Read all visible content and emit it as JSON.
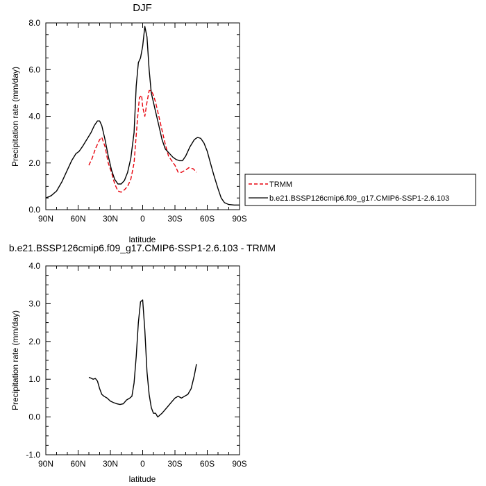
{
  "chart_data": [
    {
      "type": "line",
      "title": "DJF",
      "xlabel": "latitude",
      "ylabel": "Precipitation rate (mm/day)",
      "xlim": [
        90,
        -90
      ],
      "ylim": [
        0,
        8
      ],
      "x_ticks": [
        90,
        60,
        30,
        0,
        -30,
        -60,
        -90
      ],
      "x_tick_labels": [
        "90N",
        "60N",
        "30N",
        "0",
        "30S",
        "60S",
        "90S"
      ],
      "y_ticks": [
        0,
        2,
        4,
        6,
        8
      ],
      "y_tick_labels": [
        "0.0",
        "2.0",
        "4.0",
        "6.0",
        "8.0"
      ],
      "legend_placement": "right, outside plot",
      "series": [
        {
          "name": "TRMM",
          "color": "#e8000b",
          "dash": "dashed",
          "x": [
            50,
            47,
            44,
            40,
            38,
            35,
            32,
            29,
            26,
            23,
            20,
            17,
            14,
            11,
            8,
            5,
            3,
            1,
            0,
            -2,
            -4,
            -6,
            -8,
            -10,
            -12,
            -15,
            -18,
            -21,
            -24,
            -27,
            -30,
            -33,
            -36,
            -40,
            -43,
            -47,
            -50
          ],
          "y": [
            1.9,
            2.2,
            2.6,
            3.0,
            3.1,
            2.7,
            2.0,
            1.6,
            1.1,
            0.8,
            0.75,
            0.85,
            1.0,
            1.3,
            2.0,
            3.8,
            4.8,
            4.9,
            4.4,
            4.0,
            4.6,
            5.1,
            5.1,
            4.9,
            4.6,
            4.0,
            3.4,
            2.8,
            2.3,
            2.1,
            1.9,
            1.6,
            1.6,
            1.7,
            1.8,
            1.75,
            1.6
          ]
        },
        {
          "name": "b.e21.BSSP126cmip6.f09_g17.CMIP6-SSP1-2.6.103",
          "color": "#000000",
          "dash": "solid",
          "x": [
            90,
            85,
            80,
            75,
            70,
            66,
            62,
            59,
            56,
            52,
            48,
            45,
            42,
            40,
            38,
            35,
            32,
            29,
            26,
            23,
            20,
            17,
            14,
            11,
            8,
            6,
            4,
            2,
            0,
            -2,
            -4,
            -6,
            -8,
            -10,
            -12,
            -15,
            -18,
            -21,
            -25,
            -28,
            -31,
            -34,
            -37,
            -40,
            -44,
            -48,
            -51,
            -54,
            -57,
            -60,
            -63,
            -66,
            -70,
            -73,
            -76,
            -80,
            -85,
            -90
          ],
          "y": [
            0.5,
            0.6,
            0.8,
            1.2,
            1.7,
            2.1,
            2.4,
            2.5,
            2.7,
            3.0,
            3.3,
            3.6,
            3.8,
            3.8,
            3.6,
            3.0,
            2.3,
            1.7,
            1.3,
            1.1,
            1.1,
            1.25,
            1.6,
            2.2,
            3.3,
            5.3,
            6.3,
            6.5,
            7.0,
            7.85,
            7.4,
            6.0,
            5.0,
            4.6,
            4.2,
            3.6,
            3.0,
            2.6,
            2.4,
            2.25,
            2.15,
            2.1,
            2.1,
            2.3,
            2.7,
            3.0,
            3.1,
            3.05,
            2.85,
            2.5,
            2.0,
            1.5,
            0.9,
            0.5,
            0.3,
            0.22,
            0.2,
            0.2
          ]
        }
      ]
    },
    {
      "type": "line",
      "title": "b.e21.BSSP126cmip6.f09_g17.CMIP6-SSP1-2.6.103 - TRMM",
      "xlabel": "latitude",
      "ylabel": "Precipitation rate (mm/day)",
      "xlim": [
        90,
        -90
      ],
      "ylim": [
        -1,
        4
      ],
      "x_ticks": [
        90,
        60,
        30,
        0,
        -30,
        -60,
        -90
      ],
      "x_tick_labels": [
        "90N",
        "60N",
        "30N",
        "0",
        "30S",
        "60S",
        "90S"
      ],
      "y_ticks": [
        -1,
        0,
        1,
        2,
        3,
        4
      ],
      "y_tick_labels": [
        "-1.0",
        "0.0",
        "1.0",
        "2.0",
        "3.0",
        "4.0"
      ],
      "series": [
        {
          "color": "#000000",
          "dash": "solid",
          "x": [
            50,
            48,
            46,
            44,
            42,
            40,
            38,
            36,
            33,
            30,
            27,
            24,
            21,
            18,
            15,
            12,
            10,
            8,
            6,
            4,
            2,
            0,
            -2,
            -4,
            -6,
            -8,
            -10,
            -12,
            -14,
            -16,
            -18,
            -21,
            -24,
            -27,
            -30,
            -33,
            -36,
            -39,
            -42,
            -45,
            -48,
            -50
          ],
          "y": [
            1.05,
            1.03,
            1.0,
            1.02,
            0.95,
            0.75,
            0.6,
            0.55,
            0.5,
            0.42,
            0.38,
            0.35,
            0.33,
            0.35,
            0.45,
            0.5,
            0.55,
            0.9,
            1.6,
            2.5,
            3.05,
            3.1,
            2.3,
            1.2,
            0.6,
            0.25,
            0.1,
            0.1,
            0.0,
            0.05,
            0.1,
            0.2,
            0.3,
            0.4,
            0.5,
            0.55,
            0.5,
            0.55,
            0.6,
            0.75,
            1.1,
            1.4
          ]
        }
      ]
    }
  ]
}
